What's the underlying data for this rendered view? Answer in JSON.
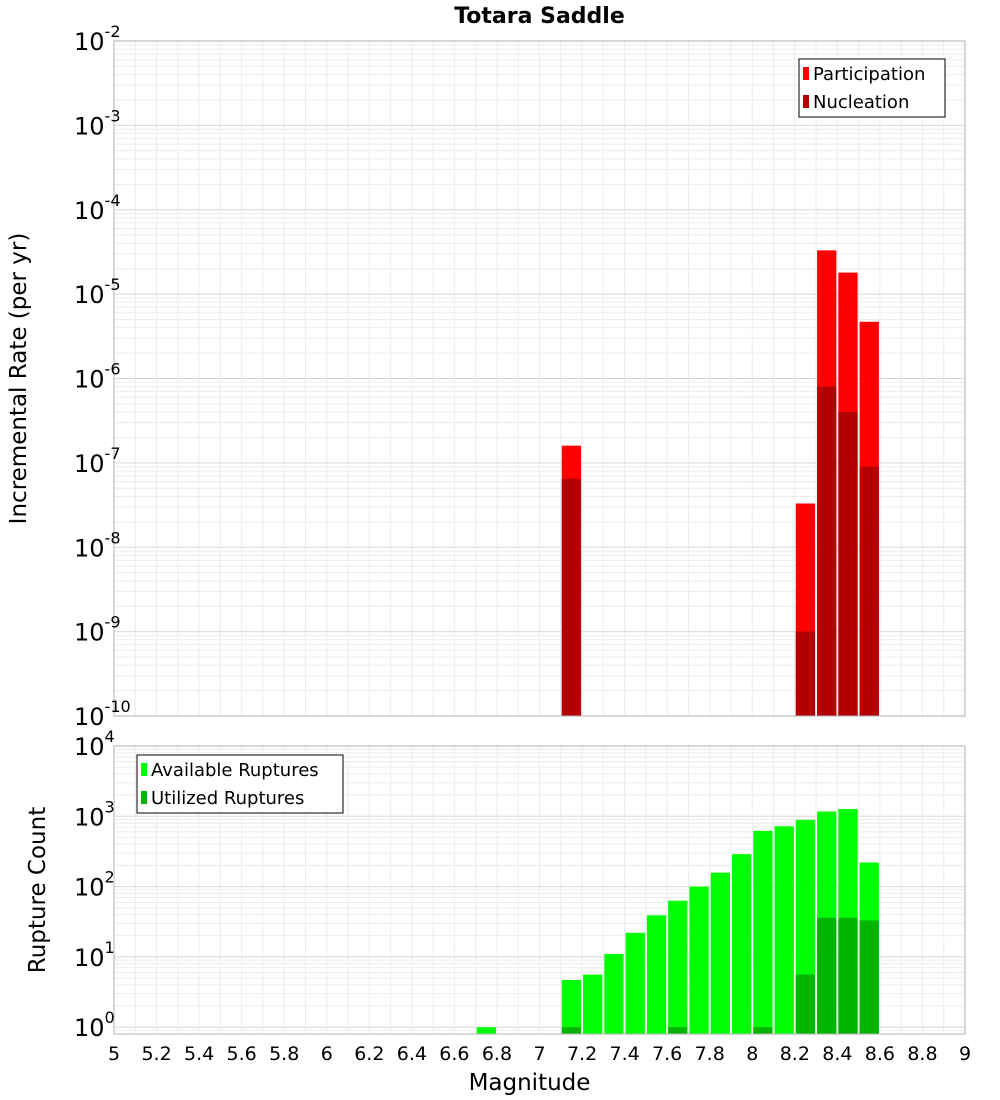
{
  "chart_data": [
    {
      "type": "bar",
      "title": "Totara Saddle",
      "xlabel": "",
      "ylabel": "Incremental Rate (per yr)",
      "yscale": "log",
      "ylim": [
        1e-10,
        0.01
      ],
      "xlim": [
        5,
        9
      ],
      "grid": true,
      "legend_position": "top-right",
      "bin_width": 0.1,
      "y_tick_exponents": [
        "-10",
        "-9",
        "-8",
        "-7",
        "-6",
        "-5",
        "-4",
        "-3",
        "-2"
      ],
      "series": [
        {
          "name": "Participation",
          "color": "#ff0000",
          "points": [
            {
              "x": 7.15,
              "y": 1.6e-07
            },
            {
              "x": 8.25,
              "y": 3.3e-08
            },
            {
              "x": 8.35,
              "y": 3.3e-05
            },
            {
              "x": 8.45,
              "y": 1.8e-05
            },
            {
              "x": 8.55,
              "y": 4.7e-06
            }
          ]
        },
        {
          "name": "Nucleation",
          "color": "#b40000",
          "points": [
            {
              "x": 7.15,
              "y": 6.5e-08
            },
            {
              "x": 8.25,
              "y": 1e-09
            },
            {
              "x": 8.35,
              "y": 8e-07
            },
            {
              "x": 8.45,
              "y": 4e-07
            },
            {
              "x": 8.55,
              "y": 9e-08
            }
          ]
        }
      ]
    },
    {
      "type": "bar",
      "title": "",
      "xlabel": "Magnitude",
      "ylabel": "Rupture Count",
      "yscale": "log",
      "ylim": [
        0.8,
        10000
      ],
      "xlim": [
        5,
        9
      ],
      "grid": true,
      "legend_position": "top-left",
      "bin_width": 0.1,
      "x_ticks": [
        "5",
        "5.2",
        "5.4",
        "5.6",
        "5.8",
        "6",
        "6.2",
        "6.4",
        "6.6",
        "6.8",
        "7",
        "7.2",
        "7.4",
        "7.6",
        "7.8",
        "8",
        "8.2",
        "8.4",
        "8.6",
        "8.8",
        "9"
      ],
      "y_tick_exponents": [
        "0",
        "1",
        "2",
        "3",
        "4"
      ],
      "series": [
        {
          "name": "Available Ruptures",
          "color": "#00ff00",
          "points": [
            {
              "x": 6.75,
              "y": 1
            },
            {
              "x": 7.15,
              "y": 4.7
            },
            {
              "x": 7.25,
              "y": 5.6
            },
            {
              "x": 7.35,
              "y": 11
            },
            {
              "x": 7.45,
              "y": 22
            },
            {
              "x": 7.55,
              "y": 39
            },
            {
              "x": 7.65,
              "y": 63
            },
            {
              "x": 7.75,
              "y": 100
            },
            {
              "x": 7.85,
              "y": 158
            },
            {
              "x": 7.95,
              "y": 290
            },
            {
              "x": 8.05,
              "y": 620
            },
            {
              "x": 8.15,
              "y": 720
            },
            {
              "x": 8.25,
              "y": 890
            },
            {
              "x": 8.35,
              "y": 1170
            },
            {
              "x": 8.45,
              "y": 1270
            },
            {
              "x": 8.55,
              "y": 220
            }
          ]
        },
        {
          "name": "Utilized Ruptures",
          "color": "#00b400",
          "points": [
            {
              "x": 7.15,
              "y": 1
            },
            {
              "x": 7.65,
              "y": 1
            },
            {
              "x": 8.05,
              "y": 1
            },
            {
              "x": 8.25,
              "y": 5.6
            },
            {
              "x": 8.35,
              "y": 36
            },
            {
              "x": 8.45,
              "y": 36
            },
            {
              "x": 8.55,
              "y": 33
            }
          ]
        }
      ]
    }
  ]
}
